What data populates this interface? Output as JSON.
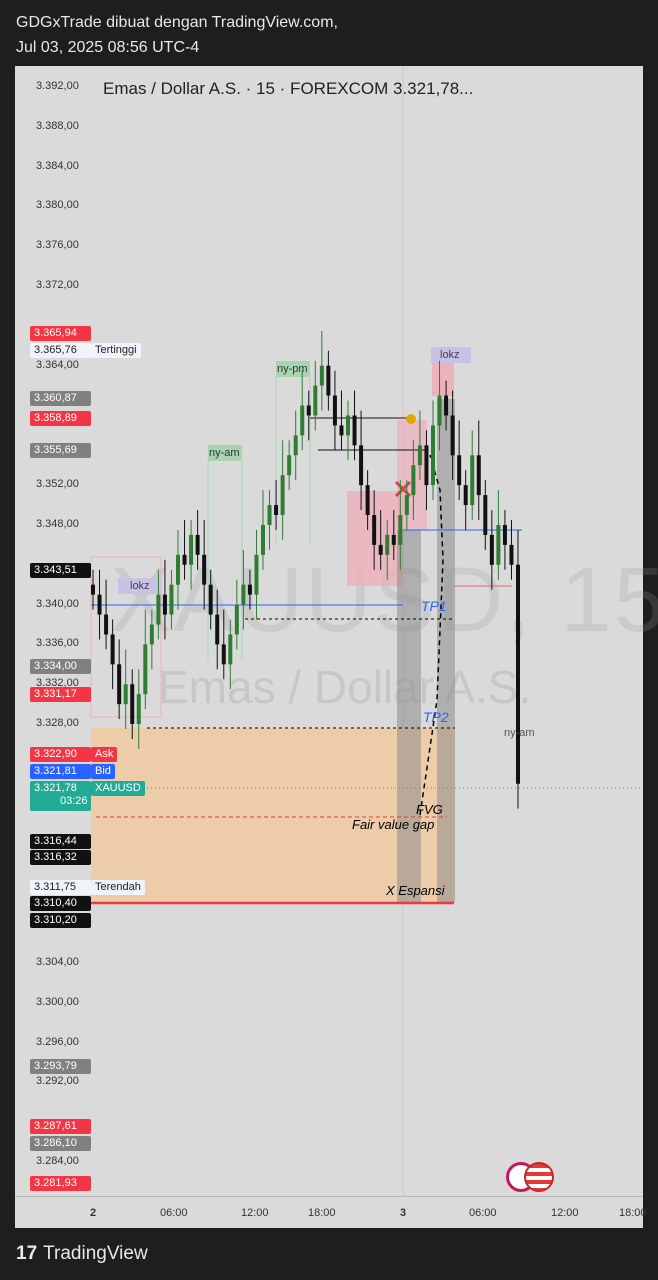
{
  "header": {
    "line1": "GDGxTrade dibuat dengan TradingView.com,",
    "line2": "Jul 03, 2025 08:56 UTC-4"
  },
  "chart": {
    "symbol_line": "Emas / Dollar A.S. · 15 · FOREXCOM  3.321,78...",
    "watermark_symbol": "XAUUSD, 15",
    "watermark_name": "Emas / Dollar A.S."
  },
  "y_axis_labels": [
    "3.392,00",
    "3.388,00",
    "3.384,00",
    "3.380,00",
    "3.376,00",
    "3.372,00",
    "3.364,00",
    "3.352,00",
    "3.348,00",
    "3.340,00",
    "3.336,00",
    "3.332,00",
    "3.328,00",
    "3.304,00",
    "3.300,00",
    "3.296,00",
    "3.292,00",
    "3.284,00"
  ],
  "price_tags": [
    {
      "price": "3.365,94",
      "color": "#f23645"
    },
    {
      "price": "3.365,76",
      "color": "#f0f3fa",
      "label": "Tertinggi"
    },
    {
      "price": "3.360,87",
      "color": "#808080"
    },
    {
      "price": "3.358,89",
      "color": "#f23645"
    },
    {
      "price": "3.355,69",
      "color": "#808080"
    },
    {
      "price": "3.343,51",
      "color": "#111111"
    },
    {
      "price": "3.334,00",
      "color": "#808080"
    },
    {
      "price": "3.331,17",
      "color": "#f23645"
    },
    {
      "price": "3.322,90",
      "color": "#f23645",
      "label": "Ask"
    },
    {
      "price": "3.321,81",
      "color": "#2962ff",
      "label": "Bid"
    },
    {
      "price": "3.321,78",
      "color": "#22ab94",
      "label": "XAUUSD",
      "countdown": "03:26"
    },
    {
      "price": "3.316,44",
      "color": "#111111"
    },
    {
      "price": "3.316,32",
      "color": "#111111"
    },
    {
      "price": "3.311,75",
      "color": "#f0f3fa",
      "label": "Terendah"
    },
    {
      "price": "3.310,40",
      "color": "#111111"
    },
    {
      "price": "3.310,20",
      "color": "#111111"
    },
    {
      "price": "3.293,79",
      "color": "#808080"
    },
    {
      "price": "3.287,61",
      "color": "#f23645"
    },
    {
      "price": "3.286,10",
      "color": "#808080"
    },
    {
      "price": "3.281,93",
      "color": "#f23645"
    }
  ],
  "x_axis_labels": [
    "2",
    "06:00",
    "12:00",
    "18:00",
    "3",
    "06:00",
    "12:00",
    "18:00"
  ],
  "annotations": {
    "lokz_1": "lokz",
    "lokz_2": "lokz",
    "ny_am_1": "ny-am",
    "ny_pm": "ny-pm",
    "ny_am_2": "ny-am",
    "tp1": "TP1",
    "tp2": "TP2",
    "fvg": "FVG",
    "fvg_full": "Fair value gap",
    "expansion": "X Espansi"
  },
  "footer": {
    "brand": "TradingView",
    "logo": "17"
  },
  "chart_data": {
    "type": "candlestick",
    "symbol": "XAUUSD",
    "timeframe": "15",
    "ylim": [
      3280,
      3394
    ],
    "last_price": 3321.78,
    "high": 3365.76,
    "low": 3311.75,
    "closes": [
      3341,
      3339,
      3337,
      3334,
      3330,
      3332,
      3328,
      3331,
      3336,
      3338,
      3341,
      3339,
      3342,
      3345,
      3344,
      3347,
      3345,
      3342,
      3339,
      3336,
      3334,
      3337,
      3340,
      3342,
      3341,
      3345,
      3348,
      3350,
      3349,
      3353,
      3355,
      3357,
      3360,
      3359,
      3362,
      3364,
      3361,
      3358,
      3357,
      3359,
      3356,
      3352,
      3349,
      3346,
      3345,
      3347,
      3346,
      3349,
      3351,
      3354,
      3356,
      3352,
      3358,
      3361,
      3359,
      3355,
      3352,
      3350,
      3355,
      3351,
      3347,
      3344,
      3348,
      3346,
      3344,
      3322
    ],
    "levels": [
      {
        "name": "TP1",
        "price": 3340.0
      },
      {
        "name": "TP2",
        "price": 3328.2
      }
    ],
    "zones": [
      {
        "name": "Fair value gap",
        "from": 3310.4,
        "to": 3328.2
      }
    ]
  }
}
